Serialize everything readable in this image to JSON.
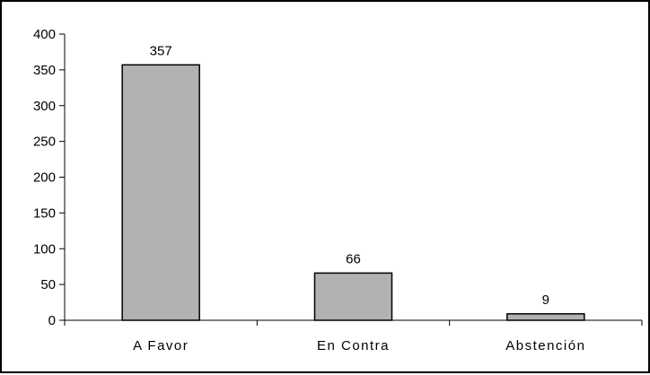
{
  "chart_data": {
    "type": "bar",
    "title": "",
    "xlabel": "",
    "ylabel": "",
    "categories": [
      "A Favor",
      "En Contra",
      "Abstención"
    ],
    "values": [
      357,
      66,
      9
    ],
    "data_labels": [
      "357",
      "66",
      "9"
    ],
    "ylim": [
      0,
      400
    ],
    "yticks": [
      0,
      50,
      100,
      150,
      200,
      250,
      300,
      350,
      400
    ],
    "ytick_labels": [
      "0",
      "50",
      "100",
      "150",
      "200",
      "250",
      "300",
      "350",
      "400"
    ],
    "grid": false,
    "legend": "none",
    "colors": {
      "bar_fill": "#b2b2b2",
      "bar_stroke": "#000000",
      "axis": "#000000",
      "text": "#000000",
      "background": "#ffffff"
    }
  }
}
